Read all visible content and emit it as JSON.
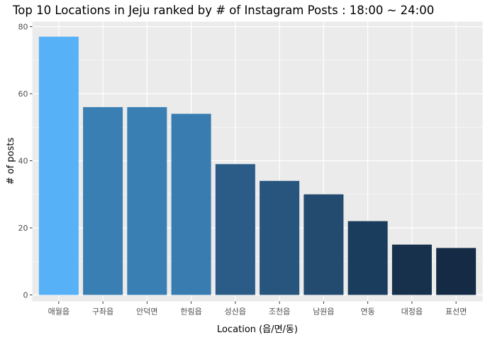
{
  "chart_data": {
    "type": "bar",
    "title": "Top 10 Locations in Jeju ranked by # of Instagram Posts : 18:00 ~ 24:00",
    "xlabel": "Location (읍/면/동)",
    "ylabel": "# of posts",
    "categories": [
      "애월읍",
      "구좌읍",
      "안덕면",
      "한림읍",
      "성산읍",
      "조천읍",
      "남원읍",
      "연동",
      "대정읍",
      "표선면"
    ],
    "values": [
      77,
      56,
      56,
      54,
      39,
      34,
      30,
      22,
      15,
      14
    ],
    "ylim": [
      0,
      80
    ],
    "yticks": [
      0,
      20,
      40,
      60,
      80
    ],
    "grid": true,
    "legend": "none",
    "colors": [
      "#56b1f7",
      "#3a7fb3",
      "#3a7fb3",
      "#397cb0",
      "#2b5c87",
      "#27557d",
      "#234a6f",
      "#1b3d5d",
      "#17304b",
      "#152b45"
    ],
    "panel_background": "#ebebeb",
    "grid_color": "#ffffff"
  }
}
